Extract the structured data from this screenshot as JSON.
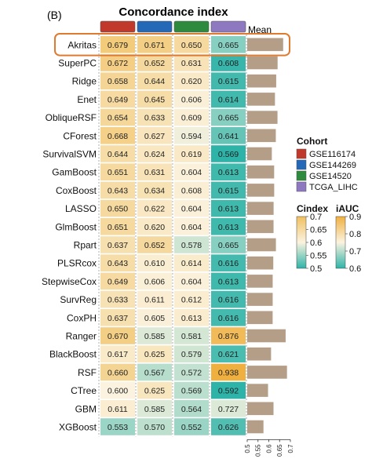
{
  "panel_label": "(B)",
  "chart_data": {
    "type": "heatmap",
    "title": "Concordance index",
    "columns": [
      "GSE116174",
      "GSE144269",
      "GSE14520",
      "TCGA_LIHC"
    ],
    "models": [
      "Akritas",
      "SuperPC",
      "Ridge",
      "Enet",
      "ObliqueRSF",
      "CForest",
      "SurvivalSVM",
      "GamBoost",
      "CoxBoost",
      "LASSO",
      "GlmBoost",
      "Rpart",
      "PLSRcox",
      "StepwiseCox",
      "SurvReg",
      "CoxPH",
      "Ranger",
      "BlackBoost",
      "RSF",
      "CTree",
      "GBM",
      "XGBoost"
    ],
    "cell_values": [
      [
        "0.679",
        "0.671",
        "0.650",
        "0.665"
      ],
      [
        "0.672",
        "0.652",
        "0.631",
        "0.608"
      ],
      [
        "0.658",
        "0.644",
        "0.620",
        "0.615"
      ],
      [
        "0.649",
        "0.645",
        "0.606",
        "0.614"
      ],
      [
        "0.654",
        "0.633",
        "0.609",
        "0.665"
      ],
      [
        "0.668",
        "0.627",
        "0.594",
        "0.641"
      ],
      [
        "0.644",
        "0.624",
        "0.619",
        "0.569"
      ],
      [
        "0.651",
        "0.631",
        "0.604",
        "0.613"
      ],
      [
        "0.643",
        "0.634",
        "0.608",
        "0.615"
      ],
      [
        "0.650",
        "0.622",
        "0.604",
        "0.613"
      ],
      [
        "0.651",
        "0.620",
        "0.604",
        "0.613"
      ],
      [
        "0.637",
        "0.652",
        "0.578",
        "0.665"
      ],
      [
        "0.643",
        "0.610",
        "0.614",
        "0.616"
      ],
      [
        "0.649",
        "0.606",
        "0.604",
        "0.613"
      ],
      [
        "0.633",
        "0.611",
        "0.612",
        "0.616"
      ],
      [
        "0.637",
        "0.605",
        "0.613",
        "0.616"
      ],
      [
        "0.670",
        "0.585",
        "0.581",
        "0.876"
      ],
      [
        "0.617",
        "0.625",
        "0.579",
        "0.621"
      ],
      [
        "0.660",
        "0.567",
        "0.572",
        "0.938"
      ],
      [
        "0.600",
        "0.625",
        "0.569",
        "0.592"
      ],
      [
        "0.611",
        "0.585",
        "0.564",
        "0.727"
      ],
      [
        "0.553",
        "0.570",
        "0.552",
        "0.626"
      ]
    ],
    "mean_label": "Mean",
    "mean_values": [
      0.6665,
      0.6408,
      0.6343,
      0.6285,
      0.6403,
      0.6325,
      0.614,
      0.6248,
      0.625,
      0.6223,
      0.622,
      0.633,
      0.6208,
      0.618,
      0.618,
      0.6178,
      0.678,
      0.6105,
      0.6843,
      0.5965,
      0.6218,
      0.5753
    ],
    "mean_axis": {
      "min": 0.5,
      "max": 0.7,
      "ticks": [
        "0.5",
        "0.55",
        "0.6",
        "0.65",
        "0.7"
      ]
    },
    "highlighted_row": "Akritas",
    "legend_cohort": {
      "title": "Cohort",
      "items": [
        {
          "label": "GSE116174",
          "color": "#c0392b"
        },
        {
          "label": "GSE144269",
          "color": "#2468b8"
        },
        {
          "label": "GSE14520",
          "color": "#2e8b3e"
        },
        {
          "label": "TCGA_LIHC",
          "color": "#8e78c0"
        }
      ]
    },
    "legend_cindex": {
      "title": "Cindex",
      "ticks": [
        "0.7",
        "0.65",
        "0.6",
        "0.55",
        "0.5"
      ],
      "range": [
        0.5,
        0.7
      ],
      "colors": [
        "#f0c060",
        "#fbf3df",
        "#2eb3a8"
      ]
    },
    "legend_iauc": {
      "title": "iAUC",
      "ticks": [
        "0.9",
        "0.8",
        "0.7",
        "0.6"
      ],
      "range": [
        0.6,
        0.9
      ],
      "colors": [
        "#f0b040",
        "#fbf3df",
        "#2eb3a8"
      ]
    },
    "mean_bar_color": "#b59e88",
    "highlight_color": "#e07a2e"
  }
}
